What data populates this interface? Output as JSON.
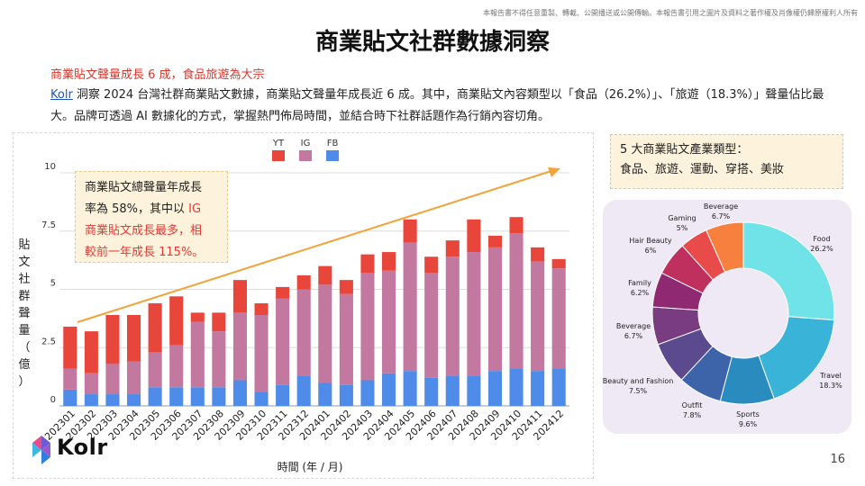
{
  "disclaimer": "本報告書不得任意重製、轉載、公開播送或公開傳輸。本報告書引用之圖片及資料之著作權及肖像權仍歸原權利人所有",
  "title": "商業貼文社群數據洞察",
  "subtitle": "商業貼文聲量成長 6 成，食品旅遊為大宗",
  "description": {
    "link": "Kolr",
    "text": " 洞察 2024 台灣社群商業貼文數據，商業貼文聲量年成長近 6 成。其中，商業貼文內容類型以「食品（26.2%）」、「旅遊（18.3%）」聲量佔比最大。品牌可透過 AI 數據化的方式，掌握熱門佈局時間，並結合時下社群話題作為行銷內容切角。"
  },
  "callout": {
    "line1": "商業貼文總聲量年成長",
    "line2_a": "率為 58%，其中以 ",
    "line2_b": "IG",
    "line3": "商業貼文成長最多，相",
    "line4": "較前一年成長 115%。"
  },
  "type_box": {
    "line1": "5 大商業貼文產業類型：",
    "line2": "食品、旅遊、運動、穿搭、美妝"
  },
  "logo_text": "Kolr",
  "page_number": "16",
  "colors": {
    "yt": "#e8463a",
    "ig": "#c2789f",
    "fb": "#4f8be8",
    "trend": "#f2a33a"
  },
  "chart_data": [
    {
      "type": "bar",
      "stacked": true,
      "title": "",
      "xlabel": "時間 (年 / 月)",
      "ylabel": "貼文社群聲量（億）",
      "ylim": [
        0,
        10
      ],
      "yticks": [
        0,
        2.5,
        5,
        7.5,
        10
      ],
      "yticklabels": [
        "0",
        "2.5",
        "5",
        "7.5",
        "10"
      ],
      "legend_position": "top",
      "categories": [
        "202301",
        "202302",
        "202303",
        "202304",
        "202305",
        "202306",
        "202307",
        "202308",
        "202309",
        "202310",
        "202311",
        "202312",
        "202401",
        "202402",
        "202403",
        "202404",
        "202405",
        "202406",
        "202407",
        "202408",
        "202409",
        "202410",
        "202411",
        "202412"
      ],
      "series": [
        {
          "name": "FB",
          "values": [
            0.7,
            0.5,
            0.5,
            0.5,
            0.8,
            0.8,
            0.8,
            0.8,
            1.1,
            0.6,
            0.9,
            1.3,
            1.0,
            0.9,
            1.1,
            1.4,
            1.5,
            1.2,
            1.3,
            1.3,
            1.5,
            1.6,
            1.5,
            1.6
          ]
        },
        {
          "name": "IG",
          "values": [
            0.9,
            0.9,
            1.3,
            1.4,
            1.5,
            1.8,
            2.8,
            2.4,
            2.9,
            3.3,
            3.7,
            3.7,
            4.2,
            3.9,
            4.6,
            4.4,
            5.5,
            4.5,
            5.1,
            5.3,
            5.3,
            5.8,
            4.7,
            4.3
          ]
        },
        {
          "name": "YT",
          "values": [
            1.8,
            1.8,
            2.1,
            2.0,
            2.1,
            2.1,
            0.4,
            0.8,
            1.4,
            0.5,
            0.5,
            0.6,
            0.8,
            0.6,
            0.8,
            0.8,
            1.0,
            0.7,
            0.7,
            1.4,
            0.5,
            0.7,
            0.6,
            0.4
          ]
        }
      ],
      "trend_line": true
    },
    {
      "type": "pie",
      "donut": true,
      "title": "",
      "slices": [
        {
          "label": "Food",
          "value": 26.2,
          "display": "26.2%",
          "color": "#6fe3e8"
        },
        {
          "label": "Travel",
          "value": 18.3,
          "display": "18.3%",
          "color": "#39b4d8"
        },
        {
          "label": "Sports",
          "value": 9.6,
          "display": "9.6%",
          "color": "#2a8bbf"
        },
        {
          "label": "Outfit",
          "value": 7.8,
          "display": "7.8%",
          "color": "#3d63a8"
        },
        {
          "label": "Beauty and Fashion",
          "value": 7.5,
          "display": "7.5%",
          "color": "#5c4a8e"
        },
        {
          "label": "Beverage",
          "value": 6.7,
          "display": "6.7%",
          "color": "#7a3c80"
        },
        {
          "label": "Family",
          "value": 6.2,
          "display": "6.2%",
          "color": "#8f2a72"
        },
        {
          "label": "Hair Beauty",
          "value": 6.0,
          "display": "6%",
          "color": "#c0305e"
        },
        {
          "label": "Gaming",
          "value": 5.0,
          "display": "5%",
          "color": "#e94a4a"
        },
        {
          "label": "Beverage",
          "value": 6.7,
          "display": "6.7%",
          "color": "#f7803e"
        }
      ]
    }
  ]
}
